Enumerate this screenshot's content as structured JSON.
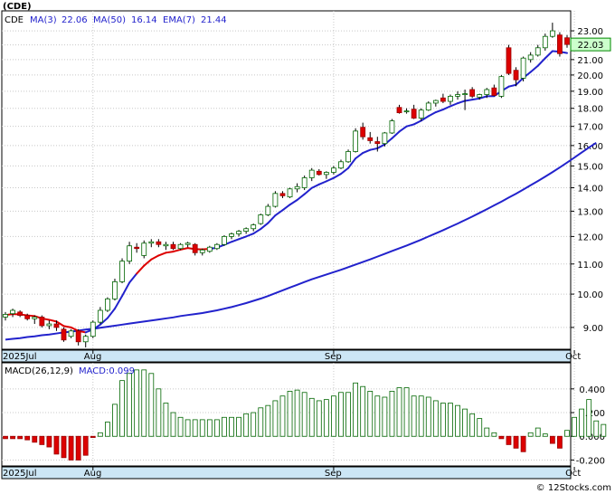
{
  "watermark": "© 12Stocks.com",
  "price_panel": {
    "ticker": "(CDE)",
    "legend": [
      {
        "label": "CDE",
        "color": "#000000"
      },
      {
        "label": "MA(3)",
        "value": "22.06",
        "color": "#2222cc"
      },
      {
        "label": "MA(50)",
        "value": "16.14",
        "color": "#2222cc"
      },
      {
        "label": "EMA(7)",
        "value": "21.44",
        "color": "#2222cc"
      }
    ],
    "last_price_tag": "22.03"
  },
  "macd_panel": {
    "legend": [
      {
        "label": "MACD(26,12,9)",
        "color": "#000000"
      },
      {
        "label": "MACD:0.099",
        "color": "#2222cc"
      }
    ]
  },
  "x_axis_labels": [
    {
      "label": "2025Jul",
      "index": 0
    },
    {
      "label": "Aug",
      "index": 12
    },
    {
      "label": "Sep",
      "index": 45
    },
    {
      "label": "Oct",
      "index": 78
    }
  ],
  "chart_data": [
    {
      "type": "candlestick",
      "title": "(CDE)",
      "y_ticks": [
        "9.00",
        "10.00",
        "11.00",
        "12.00",
        "13.00",
        "14.00",
        "15.00",
        "16.00",
        "17.00",
        "18.00",
        "19.00",
        "20.00",
        "21.00",
        "22.00",
        "23.00"
      ],
      "ylim": [
        8.4,
        24.5
      ],
      "y_scale": "log",
      "grid": true,
      "colors": {
        "up": "#ffffff",
        "down": "#dd0000",
        "ma": "#2222cc",
        "ema_down": "#dd0000"
      },
      "ohlc": [
        [
          9.3,
          9.45,
          9.2,
          9.38
        ],
        [
          9.4,
          9.55,
          9.3,
          9.5
        ],
        [
          9.45,
          9.5,
          9.3,
          9.35
        ],
        [
          9.35,
          9.4,
          9.2,
          9.25
        ],
        [
          9.25,
          9.35,
          9.1,
          9.3
        ],
        [
          9.3,
          9.35,
          9.0,
          9.05
        ],
        [
          9.05,
          9.2,
          8.95,
          9.1
        ],
        [
          9.1,
          9.2,
          8.9,
          9.0
        ],
        [
          8.95,
          9.0,
          8.6,
          8.65
        ],
        [
          8.75,
          8.95,
          8.7,
          8.9
        ],
        [
          8.9,
          8.95,
          8.5,
          8.6
        ],
        [
          8.6,
          8.8,
          8.45,
          8.75
        ],
        [
          8.75,
          9.2,
          8.7,
          9.15
        ],
        [
          9.15,
          9.6,
          9.1,
          9.5
        ],
        [
          9.5,
          9.9,
          9.45,
          9.85
        ],
        [
          9.85,
          10.5,
          9.8,
          10.4
        ],
        [
          10.4,
          11.2,
          10.35,
          11.1
        ],
        [
          11.1,
          11.8,
          11.0,
          11.65
        ],
        [
          11.6,
          11.75,
          11.4,
          11.55
        ],
        [
          11.3,
          11.85,
          11.2,
          11.75
        ],
        [
          11.75,
          11.9,
          11.6,
          11.8
        ],
        [
          11.8,
          11.9,
          11.6,
          11.7
        ],
        [
          11.65,
          11.8,
          11.5,
          11.7
        ],
        [
          11.7,
          11.8,
          11.5,
          11.55
        ],
        [
          11.55,
          11.75,
          11.5,
          11.7
        ],
        [
          11.7,
          11.8,
          11.6,
          11.75
        ],
        [
          11.7,
          11.75,
          11.3,
          11.4
        ],
        [
          11.4,
          11.55,
          11.3,
          11.5
        ],
        [
          11.45,
          11.65,
          11.4,
          11.6
        ],
        [
          11.55,
          11.75,
          11.5,
          11.7
        ],
        [
          11.7,
          12.05,
          11.65,
          12.0
        ],
        [
          12.0,
          12.15,
          11.9,
          12.1
        ],
        [
          12.1,
          12.25,
          12.0,
          12.2
        ],
        [
          12.2,
          12.35,
          12.1,
          12.3
        ],
        [
          12.3,
          12.5,
          12.2,
          12.45
        ],
        [
          12.5,
          12.9,
          12.45,
          12.85
        ],
        [
          12.85,
          13.3,
          12.8,
          13.2
        ],
        [
          13.2,
          13.85,
          13.15,
          13.75
        ],
        [
          13.75,
          13.85,
          13.55,
          13.65
        ],
        [
          13.6,
          14.0,
          13.55,
          13.95
        ],
        [
          13.95,
          14.2,
          13.8,
          14.05
        ],
        [
          14.0,
          14.55,
          13.9,
          14.45
        ],
        [
          14.45,
          14.9,
          14.3,
          14.8
        ],
        [
          14.75,
          14.85,
          14.55,
          14.6
        ],
        [
          14.6,
          14.75,
          14.4,
          14.7
        ],
        [
          14.7,
          15.0,
          14.6,
          14.9
        ],
        [
          14.9,
          15.3,
          14.85,
          15.2
        ],
        [
          15.2,
          15.8,
          15.15,
          15.7
        ],
        [
          15.7,
          16.9,
          15.65,
          16.75
        ],
        [
          16.95,
          17.2,
          16.3,
          16.45
        ],
        [
          16.4,
          16.7,
          16.1,
          16.25
        ],
        [
          16.2,
          16.45,
          15.7,
          16.1
        ],
        [
          16.1,
          16.7,
          15.95,
          16.65
        ],
        [
          16.65,
          17.4,
          16.6,
          17.3
        ],
        [
          18.05,
          18.2,
          17.7,
          17.75
        ],
        [
          17.8,
          18.0,
          17.7,
          17.85
        ],
        [
          17.95,
          18.2,
          17.4,
          17.45
        ],
        [
          17.45,
          18.0,
          17.3,
          17.9
        ],
        [
          17.9,
          18.4,
          17.85,
          18.3
        ],
        [
          18.3,
          18.5,
          18.1,
          18.45
        ],
        [
          18.6,
          18.85,
          18.3,
          18.4
        ],
        [
          18.4,
          18.8,
          18.2,
          18.7
        ],
        [
          18.7,
          19.0,
          18.5,
          18.8
        ],
        [
          18.8,
          19.1,
          17.9,
          18.85
        ],
        [
          19.1,
          19.25,
          18.6,
          18.7
        ],
        [
          18.65,
          18.85,
          18.5,
          18.8
        ],
        [
          18.8,
          19.2,
          18.6,
          19.1
        ],
        [
          19.2,
          19.4,
          18.7,
          18.75
        ],
        [
          18.7,
          20.0,
          18.6,
          19.9
        ],
        [
          21.8,
          22.0,
          20.0,
          20.1
        ],
        [
          20.3,
          20.5,
          19.3,
          19.7
        ],
        [
          19.8,
          21.2,
          19.6,
          21.1
        ],
        [
          21.0,
          21.5,
          20.8,
          21.3
        ],
        [
          21.3,
          22.0,
          21.2,
          21.8
        ],
        [
          21.8,
          22.8,
          21.6,
          22.6
        ],
        [
          22.6,
          23.6,
          22.5,
          23.0
        ],
        [
          22.7,
          22.9,
          21.2,
          21.4
        ],
        [
          22.5,
          22.7,
          21.8,
          22.03
        ]
      ],
      "ema7": [
        9.36,
        9.39,
        9.38,
        9.35,
        9.33,
        9.26,
        9.22,
        9.17,
        9.04,
        9.0,
        8.9,
        8.86,
        8.94,
        9.08,
        9.27,
        9.55,
        9.94,
        10.37,
        10.67,
        10.94,
        11.16,
        11.3,
        11.4,
        11.44,
        11.51,
        11.57,
        11.53,
        11.52,
        11.54,
        11.58,
        11.69,
        11.8,
        11.9,
        12.0,
        12.11,
        12.29,
        12.52,
        12.83,
        13.04,
        13.27,
        13.47,
        13.72,
        13.99,
        14.15,
        14.29,
        14.44,
        14.63,
        14.9,
        15.36,
        15.63,
        15.78,
        15.86,
        16.06,
        16.37,
        16.72,
        17.0,
        17.11,
        17.31,
        17.56,
        17.78,
        17.93,
        18.12,
        18.29,
        18.43,
        18.5,
        18.57,
        18.7,
        18.71,
        19.01,
        19.28,
        19.39,
        19.82,
        20.19,
        20.59,
        21.09,
        21.57,
        21.53,
        21.44
      ],
      "ma50": [
        8.66,
        8.68,
        8.7,
        8.73,
        8.75,
        8.78,
        8.8,
        8.83,
        8.86,
        8.88,
        8.91,
        8.94,
        8.96,
        8.99,
        9.02,
        9.05,
        9.08,
        9.11,
        9.14,
        9.17,
        9.2,
        9.23,
        9.26,
        9.29,
        9.33,
        9.36,
        9.39,
        9.42,
        9.46,
        9.5,
        9.55,
        9.6,
        9.66,
        9.72,
        9.79,
        9.86,
        9.94,
        10.03,
        10.12,
        10.21,
        10.3,
        10.39,
        10.48,
        10.56,
        10.64,
        10.72,
        10.8,
        10.89,
        10.98,
        11.07,
        11.16,
        11.26,
        11.36,
        11.46,
        11.56,
        11.66,
        11.77,
        11.88,
        12.0,
        12.12,
        12.24,
        12.37,
        12.5,
        12.64,
        12.78,
        12.93,
        13.08,
        13.24,
        13.4,
        13.57,
        13.74,
        13.92,
        14.11,
        14.3,
        14.5,
        14.71,
        14.93,
        15.16,
        15.4,
        15.65,
        15.9,
        16.14
      ]
    },
    {
      "type": "bar",
      "title": "MACD(26,12,9)",
      "y_ticks": [
        "-0.200",
        "0.000",
        "0.200",
        "0.400"
      ],
      "ylim": [
        -0.25,
        0.62
      ],
      "grid": true,
      "colors": {
        "positive": "#ffffff",
        "negative": "#dd0000"
      },
      "values": [
        -0.02,
        -0.02,
        -0.02,
        -0.03,
        -0.05,
        -0.07,
        -0.09,
        -0.15,
        -0.18,
        -0.2,
        -0.2,
        -0.16,
        -0.01,
        0.03,
        0.12,
        0.27,
        0.47,
        0.53,
        0.56,
        0.56,
        0.53,
        0.4,
        0.28,
        0.2,
        0.16,
        0.14,
        0.14,
        0.14,
        0.14,
        0.14,
        0.16,
        0.16,
        0.16,
        0.19,
        0.2,
        0.24,
        0.26,
        0.3,
        0.34,
        0.38,
        0.39,
        0.37,
        0.32,
        0.3,
        0.31,
        0.34,
        0.37,
        0.37,
        0.45,
        0.42,
        0.38,
        0.34,
        0.33,
        0.38,
        0.41,
        0.41,
        0.34,
        0.34,
        0.33,
        0.3,
        0.28,
        0.28,
        0.26,
        0.23,
        0.19,
        0.15,
        0.07,
        0.03,
        -0.02,
        -0.07,
        -0.1,
        -0.13,
        0.03,
        0.07,
        0.02,
        -0.06,
        -0.1,
        0.05,
        0.16,
        0.23,
        0.31,
        0.13,
        0.1
      ]
    }
  ]
}
